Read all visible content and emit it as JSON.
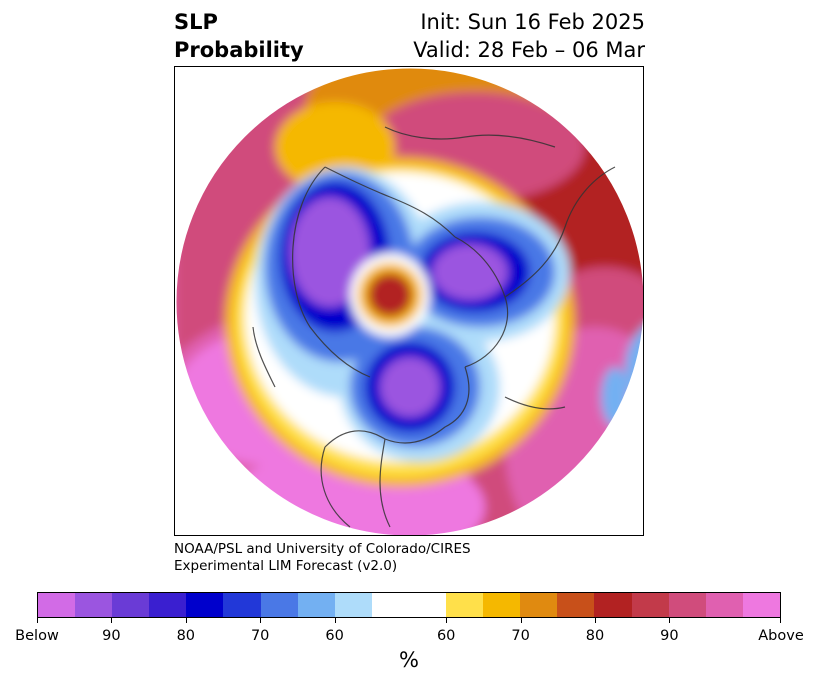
{
  "header": {
    "title_line1": "SLP",
    "title_line2": "Probability",
    "init": "Init: Sun 16 Feb 2025",
    "valid": "Valid: 28 Feb – 06 Mar"
  },
  "credit": {
    "line1": "NOAA/PSL and University of Colorado/CIRES",
    "line2": "Experimental LIM Forecast (v2.0)"
  },
  "colorbar": {
    "colors": [
      "#d26be6",
      "#9b55e0",
      "#6a3bd6",
      "#3a1fd0",
      "#0000cc",
      "#2238d8",
      "#4a78e6",
      "#73b0f2",
      "#aedcfa",
      "#ffffff",
      "#ffe04a",
      "#f5b800",
      "#e08a10",
      "#c8501a",
      "#b22222",
      "#c23a4a",
      "#d04c7c",
      "#e060b0",
      "#ee78e0"
    ],
    "weights": [
      1,
      1,
      1,
      1,
      1,
      1,
      1,
      1,
      1,
      2,
      1,
      1,
      1,
      1,
      1,
      1,
      1,
      1,
      1
    ],
    "ticks": [
      "Below",
      "90",
      "80",
      "70",
      "60",
      "60",
      "70",
      "80",
      "90",
      "Above"
    ],
    "unit": "%"
  },
  "map": {
    "projection": "north-polar-stereographic",
    "variable": "sea-level-pressure-tercile-probability"
  }
}
